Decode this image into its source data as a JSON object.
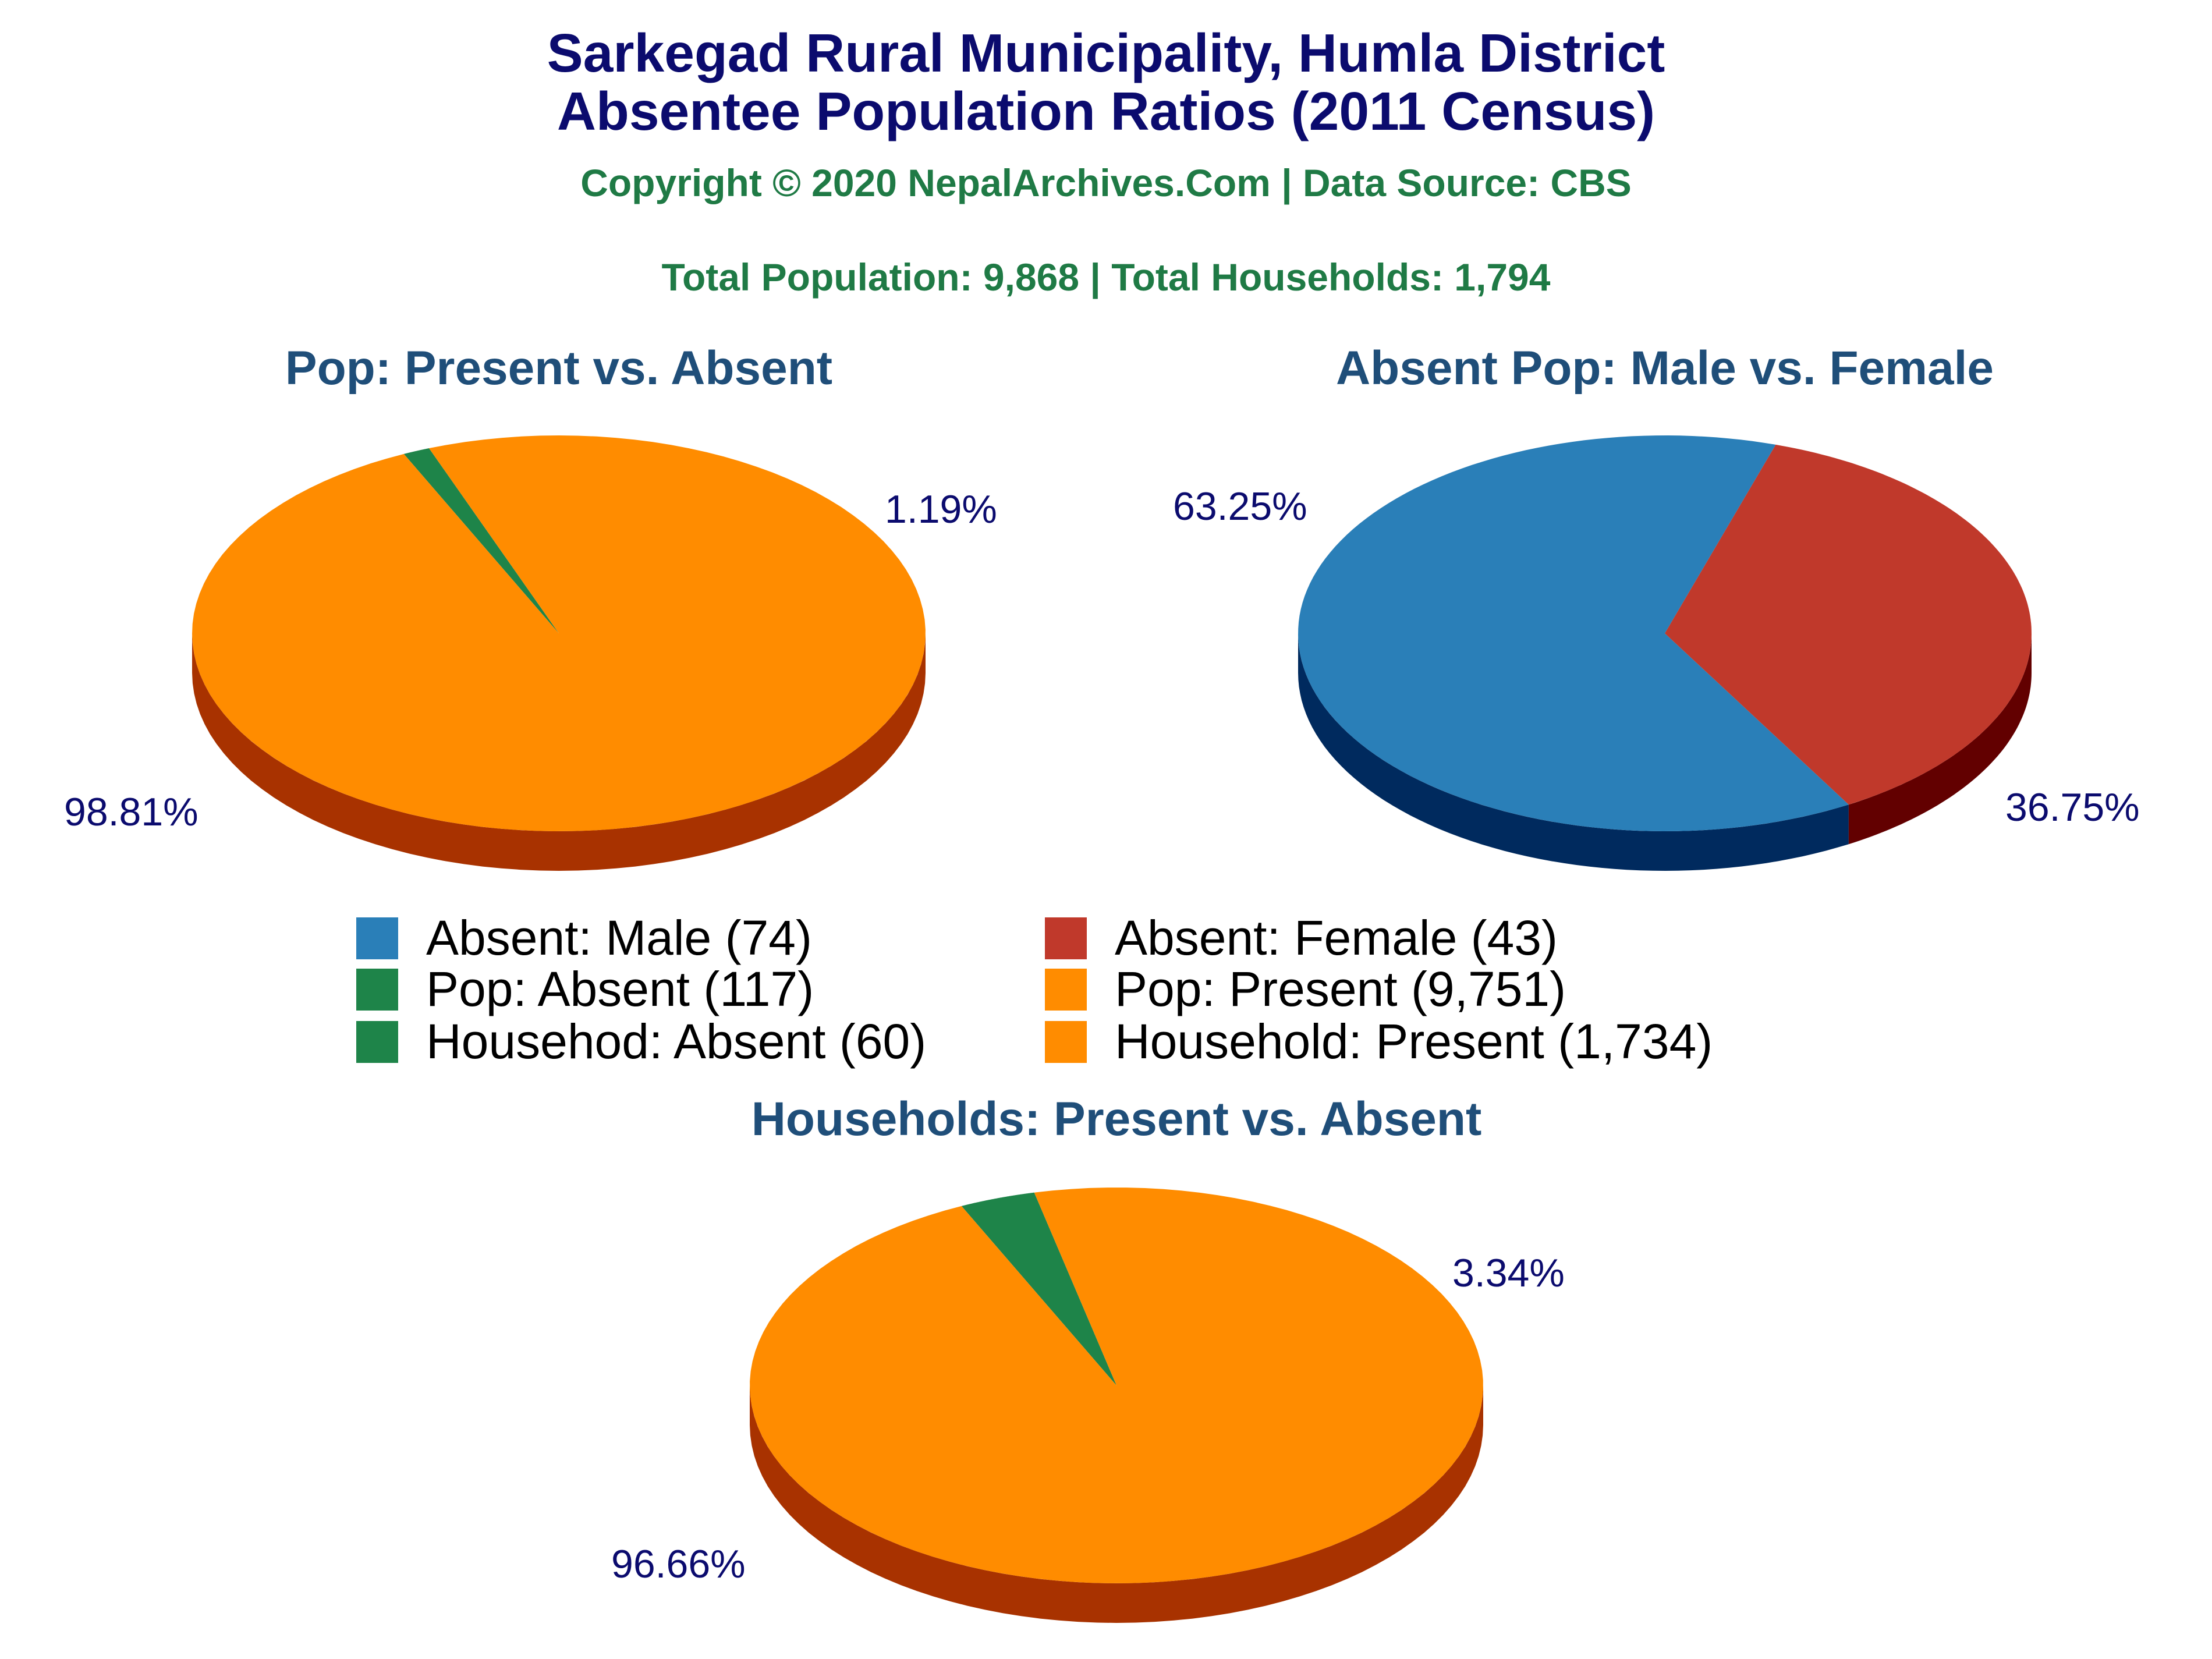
{
  "header": {
    "title_line1": "Sarkegad Rural Municipality, Humla District",
    "title_line2": "Absentee Population Ratios (2011 Census)",
    "copyright": "Copyright © 2020 NepalArchives.Com | Data Source: CBS",
    "totals": "Total Population: 9,868 | Total Households: 1,794"
  },
  "colors": {
    "title": "#0b0b6e",
    "subtitle": "#1f7a45",
    "chart_title": "#1f4e79",
    "label": "#0b0b6e",
    "male": "#2a7fb8",
    "male_side": "#002a5e",
    "female": "#c0392b",
    "female_side": "#620000",
    "absent": "#1e8449",
    "absent_side": "#0b4a22",
    "present": "#ff8c00",
    "present_side": "#a83200"
  },
  "chart_data": [
    {
      "type": "pie",
      "title": "Pop: Present vs. Absent",
      "slices": [
        {
          "name": "Pop: Absent",
          "value": 117,
          "label": "1.19%",
          "color": "#1e8449",
          "side": "#0b4a22"
        },
        {
          "name": "Pop: Present",
          "value": 9751,
          "label": "98.81%",
          "color": "#ff8c00",
          "side": "#a83200"
        }
      ]
    },
    {
      "type": "pie",
      "title": "Absent Pop: Male vs. Female",
      "slices": [
        {
          "name": "Absent: Male",
          "value": 74,
          "label": "63.25%",
          "color": "#2a7fb8",
          "side": "#002a5e"
        },
        {
          "name": "Absent: Female",
          "value": 43,
          "label": "36.75%",
          "color": "#c0392b",
          "side": "#620000"
        }
      ]
    },
    {
      "type": "pie",
      "title": "Households: Present vs. Absent",
      "slices": [
        {
          "name": "Household: Absent",
          "value": 60,
          "label": "3.34%",
          "color": "#1e8449",
          "side": "#0b4a22"
        },
        {
          "name": "Household: Present",
          "value": 1734,
          "label": "96.66%",
          "color": "#ff8c00",
          "side": "#a83200"
        }
      ]
    }
  ],
  "legend": [
    {
      "label": "Absent: Male (74)",
      "color": "#2a7fb8"
    },
    {
      "label": "Absent: Female (43)",
      "color": "#c0392b"
    },
    {
      "label": "Pop: Absent (117)",
      "color": "#1e8449"
    },
    {
      "label": "Pop: Present (9,751)",
      "color": "#ff8c00"
    },
    {
      "label": "Househod: Absent (60)",
      "color": "#1e8449"
    },
    {
      "label": "Household: Present (1,734)",
      "color": "#ff8c00"
    }
  ]
}
